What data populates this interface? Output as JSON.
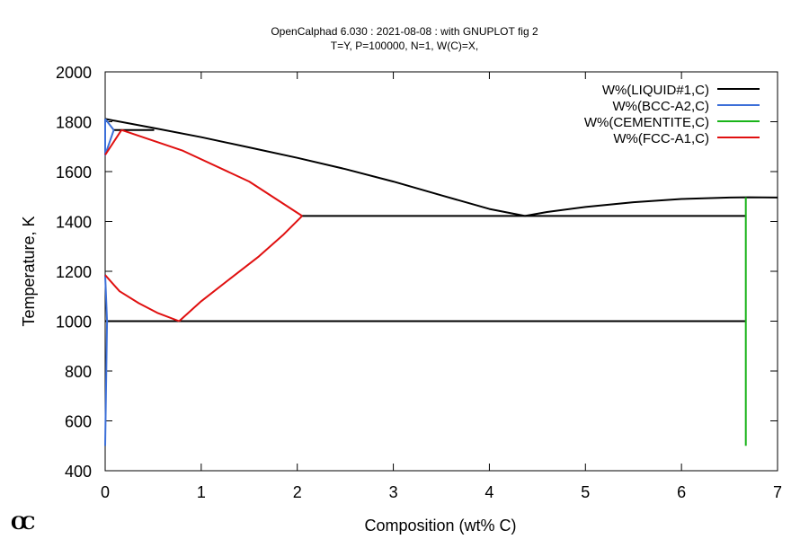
{
  "chart_data": {
    "type": "line",
    "title": "OpenCalphad    6.030 :  2021-08-08 : with GNUPLOT fig 2",
    "subtitle": "T=Y,  P=100000, N=1, W(C)=X,",
    "xlabel": "Composition (wt% C)",
    "ylabel": "Temperature, K",
    "xlim": [
      0,
      7
    ],
    "ylim": [
      400,
      2000
    ],
    "xticks": [
      0,
      1,
      2,
      3,
      4,
      5,
      6,
      7
    ],
    "yticks": [
      400,
      600,
      800,
      1000,
      1200,
      1400,
      1600,
      1800,
      2000
    ],
    "legend_position": "top-right",
    "grid": false,
    "series": [
      {
        "name": "W%(LIQUID#1,C)",
        "color": "#000000",
        "segments": [
          [
            [
              0.0,
              1811
            ],
            [
              0.5,
              1775
            ],
            [
              1.0,
              1738
            ],
            [
              1.5,
              1697
            ],
            [
              2.0,
              1655
            ],
            [
              2.5,
              1610
            ],
            [
              3.0,
              1560
            ],
            [
              3.5,
              1505
            ],
            [
              4.0,
              1450
            ],
            [
              4.37,
              1422
            ]
          ],
          [
            [
              4.37,
              1422
            ],
            [
              4.6,
              1438
            ],
            [
              5.0,
              1458
            ],
            [
              5.5,
              1477
            ],
            [
              6.0,
              1490
            ],
            [
              6.5,
              1496
            ],
            [
              6.7,
              1497
            ],
            [
              7.0,
              1496
            ]
          ],
          [
            [
              0.09,
              1767
            ],
            [
              0.51,
              1767
            ]
          ],
          [
            [
              2.05,
              1422
            ],
            [
              6.67,
              1422
            ]
          ],
          [
            [
              0.0,
              1000
            ],
            [
              6.67,
              1000
            ]
          ]
        ]
      },
      {
        "name": "W%(BCC-A2,C)",
        "color": "#3c6fd8",
        "segments": [
          [
            [
              0.0,
              1811
            ],
            [
              0.09,
              1767
            ]
          ],
          [
            [
              0.0,
              1811
            ],
            [
              0.0,
              1667
            ],
            [
              0.09,
              1767
            ]
          ],
          [
            [
              0.0,
              1185
            ],
            [
              0.02,
              1000
            ],
            [
              0.0,
              500
            ]
          ]
        ]
      },
      {
        "name": "W%(CEMENTITE,C)",
        "color": "#19b419",
        "segments": [
          [
            [
              6.67,
              1497
            ],
            [
              6.67,
              500
            ]
          ]
        ]
      },
      {
        "name": "W%(FCC-A1,C)",
        "color": "#e01010",
        "segments": [
          [
            [
              0.0,
              1667
            ],
            [
              0.17,
              1767
            ]
          ],
          [
            [
              0.17,
              1767
            ],
            [
              0.8,
              1685
            ],
            [
              1.5,
              1560
            ],
            [
              2.05,
              1422
            ]
          ],
          [
            [
              0.0,
              1185
            ],
            [
              0.15,
              1120
            ],
            [
              0.35,
              1072
            ],
            [
              0.55,
              1032
            ],
            [
              0.77,
              1000
            ]
          ],
          [
            [
              0.77,
              1000
            ],
            [
              1.0,
              1080
            ],
            [
              1.3,
              1170
            ],
            [
              1.6,
              1260
            ],
            [
              1.85,
              1345
            ],
            [
              2.05,
              1422
            ]
          ]
        ]
      }
    ]
  },
  "logo_text": "OC"
}
